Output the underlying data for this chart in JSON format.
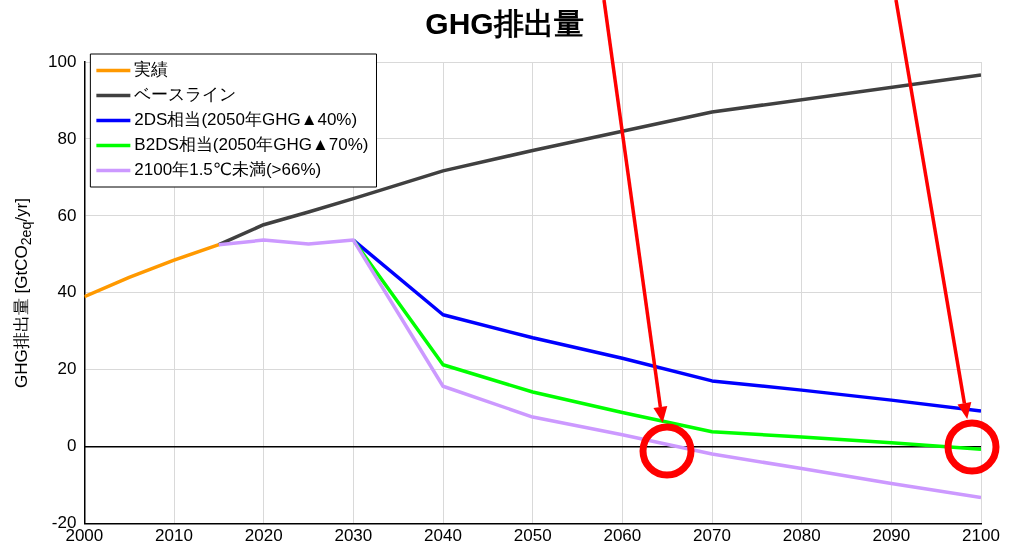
{
  "chart_data": {
    "type": "line",
    "title": "GHG排出量",
    "ylabel": "GHG排出量 [GtCO$_{2eq}$/yr]",
    "xlim": [
      2000,
      2100
    ],
    "xticks": [
      2000,
      2010,
      2020,
      2030,
      2040,
      2050,
      2060,
      2070,
      2080,
      2090,
      2100
    ],
    "ylim": [
      -20,
      100
    ],
    "yticks": [
      -20,
      0,
      20,
      40,
      60,
      80,
      100
    ],
    "grid": true,
    "legend": "top left",
    "marker": "none",
    "line_style": "solid",
    "ref_lines": [
      {
        "axis": "y",
        "value": 0,
        "color": "#000000"
      }
    ],
    "series": [
      {
        "name": "実績",
        "color": "#ff9900",
        "x": [
          2000,
          2005,
          2010,
          2015
        ],
        "values": [
          39,
          44,
          48.5,
          52.5
        ]
      },
      {
        "name": "ベースライン",
        "color": "#404040",
        "x": [
          2015,
          2020,
          2025,
          2030,
          2040,
          2050,
          2060,
          2070,
          2100
        ],
        "values": [
          52.5,
          57.7,
          61,
          64.5,
          71.7,
          77,
          82,
          87,
          96.6
        ]
      },
      {
        "name": "2DS相当(2050年GHG▲40%)",
        "color": "#0000ff",
        "x": [
          2030,
          2040,
          2050,
          2060,
          2070,
          2080,
          2090,
          2100
        ],
        "values": [
          53.7,
          34.3,
          28.3,
          23,
          17.1,
          14.7,
          12.1,
          9.3
        ]
      },
      {
        "name": "B2DS相当(2050年GHG▲70%)",
        "color": "#00ff00",
        "x": [
          2030,
          2040,
          2050,
          2060,
          2070,
          2080,
          2090,
          2100
        ],
        "values": [
          53.7,
          21.3,
          14.2,
          8.9,
          3.9,
          2.5,
          1,
          -0.7
        ]
      },
      {
        "name": "2100年1.5℃未満(>66%)",
        "color": "#cc99ff",
        "x": [
          2015,
          2020,
          2025,
          2030,
          2040,
          2050,
          2060,
          2070,
          2080,
          2090,
          2100
        ],
        "values": [
          52.5,
          53.7,
          52.7,
          53.7,
          15.7,
          7.7,
          3.1,
          -1.9,
          -5.7,
          -9.6,
          -13.2
        ]
      }
    ]
  }
}
